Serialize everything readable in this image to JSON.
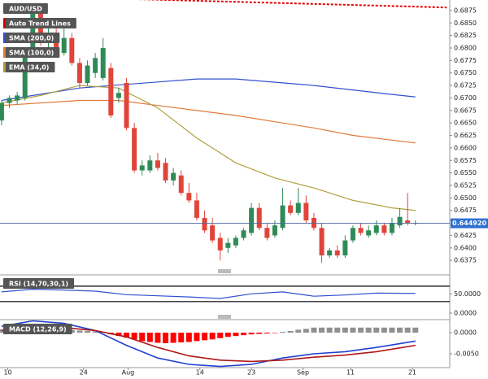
{
  "chart_data": [
    {
      "type": "candlestick",
      "title": "AUD/USD",
      "open": [
        0.6655,
        0.669,
        0.6695,
        0.67,
        0.679,
        0.687,
        0.681,
        0.683,
        0.679,
        0.682,
        0.677,
        0.673,
        0.675,
        0.674,
        0.676,
        0.67,
        0.673,
        0.664,
        0.6555,
        0.6555,
        0.6575,
        0.657,
        0.6535,
        0.6545,
        0.651,
        0.6495,
        0.646,
        0.6445,
        0.642,
        0.64,
        0.6405,
        0.642,
        0.643,
        0.648,
        0.644,
        0.6425,
        0.644,
        0.6485,
        0.647,
        0.649,
        0.646,
        0.644,
        0.6385,
        0.6395,
        0.6385,
        0.6415,
        0.644,
        0.6425,
        0.643,
        0.6445,
        0.643,
        0.6445,
        0.6455,
        0.6449
      ],
      "high": [
        0.6695,
        0.6705,
        0.6712,
        0.6795,
        0.6875,
        0.688,
        0.684,
        0.6845,
        0.6845,
        0.683,
        0.678,
        0.6775,
        0.679,
        0.682,
        0.677,
        0.672,
        0.674,
        0.665,
        0.6575,
        0.6585,
        0.659,
        0.658,
        0.656,
        0.6555,
        0.653,
        0.651,
        0.6475,
        0.646,
        0.643,
        0.642,
        0.6425,
        0.644,
        0.649,
        0.649,
        0.645,
        0.6455,
        0.652,
        0.6495,
        0.652,
        0.6505,
        0.647,
        0.645,
        0.64,
        0.6405,
        0.6425,
        0.6445,
        0.645,
        0.6445,
        0.6455,
        0.645,
        0.646,
        0.648,
        0.651,
        0.6455
      ],
      "low": [
        0.6645,
        0.668,
        0.6688,
        0.6695,
        0.6785,
        0.6805,
        0.68,
        0.6785,
        0.6785,
        0.6765,
        0.672,
        0.6725,
        0.674,
        0.6735,
        0.666,
        0.669,
        0.6635,
        0.655,
        0.6545,
        0.655,
        0.6555,
        0.653,
        0.6525,
        0.6505,
        0.649,
        0.6455,
        0.643,
        0.641,
        0.6375,
        0.639,
        0.64,
        0.6415,
        0.6425,
        0.6435,
        0.6415,
        0.642,
        0.6435,
        0.6465,
        0.6465,
        0.645,
        0.6435,
        0.637,
        0.638,
        0.638,
        0.638,
        0.641,
        0.6425,
        0.642,
        0.6425,
        0.6425,
        0.6425,
        0.644,
        0.6445,
        0.6445
      ],
      "close": [
        0.669,
        0.67,
        0.6705,
        0.679,
        0.687,
        0.681,
        0.683,
        0.679,
        0.682,
        0.677,
        0.673,
        0.6765,
        0.678,
        0.68,
        0.6665,
        0.671,
        0.664,
        0.6555,
        0.6565,
        0.6575,
        0.656,
        0.6535,
        0.655,
        0.651,
        0.6495,
        0.646,
        0.6435,
        0.6415,
        0.6395,
        0.641,
        0.642,
        0.6435,
        0.648,
        0.644,
        0.642,
        0.6445,
        0.6485,
        0.647,
        0.649,
        0.6455,
        0.644,
        0.6385,
        0.6395,
        0.6385,
        0.6415,
        0.644,
        0.643,
        0.6435,
        0.6445,
        0.643,
        0.645,
        0.6462,
        0.645,
        0.645
      ],
      "up_color": "#2e8b57",
      "down_color": "#e0453a",
      "series": [
        {
          "name": "Auto Trend Lines",
          "color": "#e00000",
          "x": [
            0,
            57
          ],
          "values": [
            0.6905,
            0.6881
          ]
        },
        {
          "name": "SMA (200,0)",
          "color": "#3050d0",
          "x": [
            0,
            10,
            20,
            25,
            30,
            40,
            50,
            53
          ],
          "values": [
            0.6695,
            0.672,
            0.6732,
            0.6738,
            0.6738,
            0.6725,
            0.6707,
            0.6702
          ]
        },
        {
          "name": "SMA (100,0)",
          "color": "#e07a3a",
          "x": [
            0,
            10,
            15,
            20,
            30,
            40,
            45,
            53
          ],
          "values": [
            0.6685,
            0.6695,
            0.6695,
            0.6685,
            0.6665,
            0.664,
            0.6625,
            0.661
          ]
        },
        {
          "name": "EMA (34,0)",
          "color": "#b0a040",
          "x": [
            0,
            5,
            10,
            15,
            20,
            25,
            30,
            35,
            40,
            45,
            50,
            53
          ],
          "values": [
            0.669,
            0.6705,
            0.6725,
            0.672,
            0.668,
            0.662,
            0.657,
            0.654,
            0.652,
            0.6495,
            0.648,
            0.6475
          ]
        }
      ],
      "last_price": {
        "value": 0.64492,
        "label": "0.644920"
      },
      "ylim": [
        0.6359,
        0.6896
      ],
      "yticks": [
        0.6875,
        {
          "value": 0.685,
          "label": "0.6850"
        },
        0.6825,
        {
          "value": 0.68,
          "label": "0.6800"
        },
        0.6775,
        {
          "value": 0.675,
          "label": "0.6750"
        },
        0.6725,
        {
          "value": 0.67,
          "label": "0.6700"
        },
        0.6675,
        {
          "value": 0.665,
          "label": "0.6650"
        },
        0.6625,
        {
          "value": 0.66,
          "label": "0.6600"
        },
        0.6575,
        {
          "value": 0.655,
          "label": "0.6550"
        },
        0.6525,
        {
          "value": 0.65,
          "label": "0.6500"
        },
        0.6475,
        0.6425,
        {
          "value": 0.64,
          "label": "0.6400"
        },
        0.6375
      ],
      "xlim": [
        -0.2,
        57.4
      ],
      "xticks": [
        {
          "value": 0.8,
          "label": "10"
        },
        {
          "value": 10.5,
          "label": "24"
        },
        {
          "value": 16.2,
          "label": "Aug"
        },
        {
          "value": 25.4,
          "label": "14"
        },
        {
          "value": 32,
          "label": "23"
        },
        {
          "value": 38.6,
          "label": "Sep"
        },
        {
          "value": 44.7,
          "label": "11"
        },
        {
          "value": 52.6,
          "label": "21"
        }
      ]
    },
    {
      "type": "line",
      "title": "RSI (14,70,30,1)",
      "levels": [
        70,
        30
      ],
      "series": [
        {
          "color": "#3050d0",
          "x": [
            0,
            4,
            8,
            12,
            16,
            20,
            24,
            28,
            32,
            36,
            40,
            44,
            48,
            53
          ],
          "values": [
            55,
            62,
            60,
            57,
            48,
            45,
            42,
            38,
            50,
            55,
            44,
            47,
            52,
            51
          ]
        }
      ],
      "ylim": [
        0,
        95
      ],
      "yticks": [
        {
          "value": 50,
          "label": "50.0000"
        },
        {
          "value": 0,
          "label": "0.0000"
        }
      ]
    },
    {
      "type": "macd",
      "title": "MACD (12,26,9)",
      "histogram": [
        0.0008,
        0.0009,
        0.001,
        0.0012,
        0.0015,
        0.0016,
        0.0012,
        0.001,
        0.0008,
        0.0006,
        0.0005,
        0.0004,
        0.0003,
        0.0002,
        -0.0004,
        -0.0008,
        -0.0012,
        -0.0016,
        -0.002,
        -0.0022,
        -0.0024,
        -0.0025,
        -0.0024,
        -0.0023,
        -0.0022,
        -0.002,
        -0.0018,
        -0.0016,
        -0.0013,
        -0.001,
        -0.0008,
        -0.0006,
        -0.0004,
        -0.0003,
        -0.0002,
        -0.0001,
        0.0002,
        0.0004,
        0.0007,
        0.0009,
        0.0012,
        0.0012,
        0.0012,
        0.0012,
        0.0012,
        0.0012,
        0.0012,
        0.0012,
        0.0012,
        0.0012,
        0.0012,
        0.0012,
        0.0012,
        0.0012
      ],
      "up_color": "#909090",
      "down_color": "#ff0000",
      "series": [
        {
          "color": "#2040d0",
          "x": [
            0,
            4,
            8,
            12,
            16,
            20,
            24,
            28,
            32,
            36,
            40,
            44,
            48,
            53
          ],
          "values": [
            0.0015,
            0.0028,
            0.0022,
            0.0005,
            -0.003,
            -0.006,
            -0.0075,
            -0.008,
            -0.0075,
            -0.006,
            -0.005,
            -0.0045,
            -0.0035,
            -0.002
          ]
        },
        {
          "color": "#b01818",
          "x": [
            0,
            4,
            8,
            12,
            16,
            20,
            24,
            28,
            32,
            36,
            40,
            44,
            48,
            53
          ],
          "values": [
            0.0005,
            0.0012,
            0.0012,
            0.0005,
            -0.001,
            -0.0035,
            -0.0055,
            -0.0065,
            -0.0068,
            -0.0065,
            -0.0058,
            -0.0053,
            -0.0045,
            -0.003
          ]
        }
      ],
      "ylim": [
        -0.00827,
        0.00308
      ],
      "yticks": [
        {
          "value": 0,
          "label": "0.0000"
        },
        {
          "value": -0.005,
          "label": "-0.0050"
        }
      ]
    }
  ]
}
